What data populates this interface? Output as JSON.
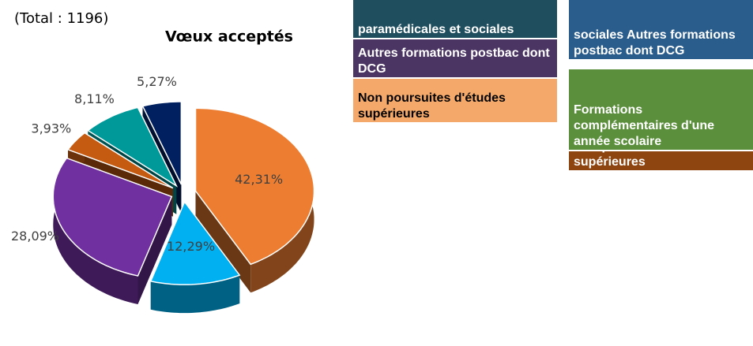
{
  "chart_data": {
    "type": "pie",
    "title": "Vœux acceptés",
    "subtitle": "(Total : 1196)",
    "values": [
      42.31,
      12.29,
      28.09,
      3.93,
      8.11,
      5.27
    ],
    "value_labels": [
      "42,31%",
      "12,29%",
      "28,09%",
      "3,93%",
      "8,11%",
      "5,27%"
    ],
    "colors": [
      "#ed7d31",
      "#00b0f0",
      "#7030a0",
      "#c55a11",
      "#009999",
      "#002060"
    ],
    "legend": [
      {
        "label": "paramédicales et sociales",
        "color": "#1f4e5f",
        "text_color": "#ffffff"
      },
      {
        "label": "Autres formations postbac dont DCG",
        "color": "#4b3563",
        "text_color": "#ffffff"
      },
      {
        "label": "Non poursuites d'études supérieures",
        "color": "#f4a86a",
        "text_color": "#000000"
      },
      {
        "label": "sociales Autres formations postbac dont DCG",
        "color": "#2a5d8c",
        "text_color": "#ffffff"
      },
      {
        "label": "Formations complémentaires d'une année scolaire",
        "color": "#5b8f3c",
        "text_color": "#ffffff"
      },
      {
        "label": "Non poursuites d'études supérieures",
        "color": "#8f4510",
        "text_color": "#ffffff"
      }
    ]
  }
}
